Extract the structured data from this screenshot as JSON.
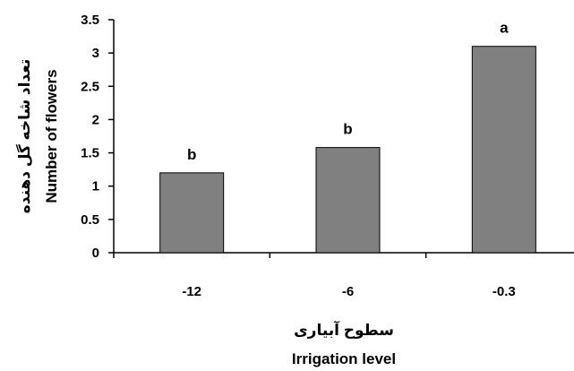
{
  "chart_data": {
    "type": "bar",
    "categories": [
      "-12",
      "-6",
      "-0.3"
    ],
    "values": [
      1.2,
      1.58,
      3.1
    ],
    "significance_letters": [
      "b",
      "b",
      "a"
    ],
    "ylim": [
      0,
      3.5
    ],
    "yticks": [
      "0",
      "0.5",
      "1",
      "1.5",
      "2",
      "2.5",
      "3",
      "3.5"
    ],
    "ytick_values": [
      0,
      0.5,
      1,
      1.5,
      2,
      2.5,
      3,
      3.5
    ],
    "ylabel_fa": "تعداد شاخه گل دهنده",
    "ylabel": "Number of flowers",
    "xlabel_fa": "سطوح آبیاری",
    "xlabel": "Irrigation level",
    "grid": false,
    "legend": "none",
    "bar_color": "#808080",
    "bar_edge_color": "#000000"
  }
}
